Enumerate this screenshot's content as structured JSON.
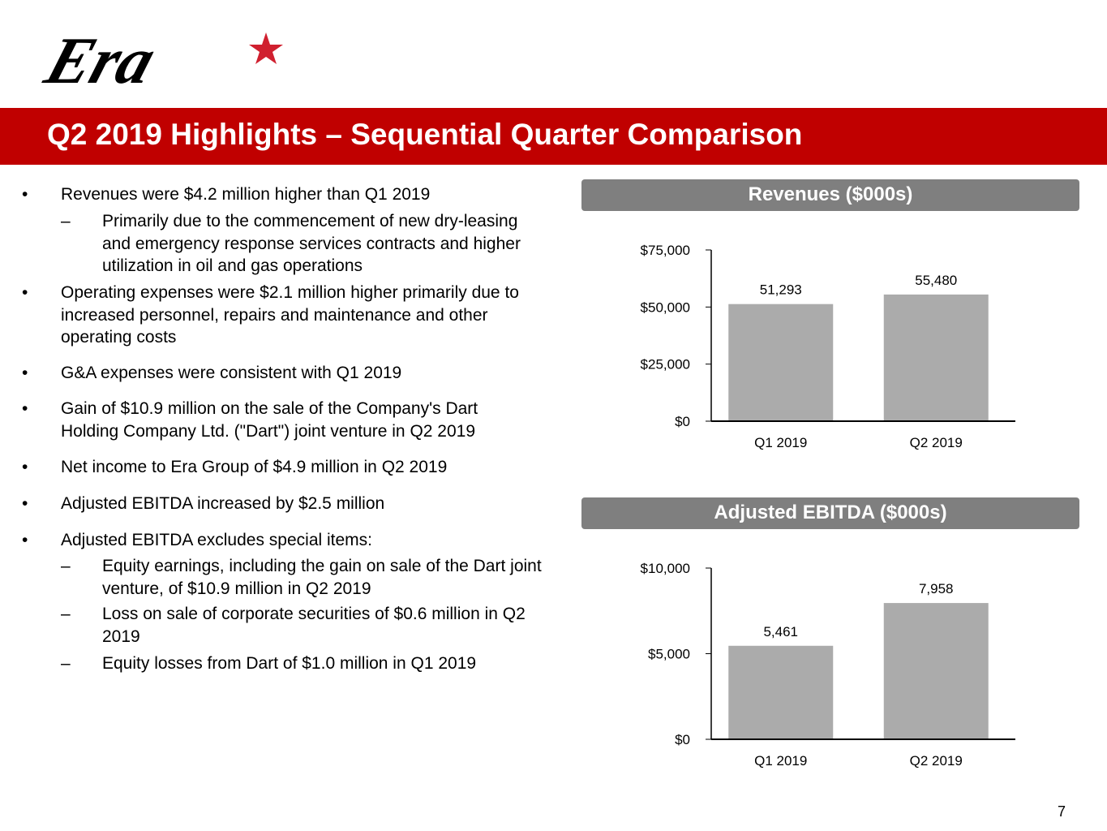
{
  "logo": {
    "text": "Era",
    "colors": {
      "text": "#000000",
      "star": "#d0202f"
    }
  },
  "title": "Q2 2019 Highlights – Sequential Quarter Comparison",
  "colors": {
    "banner": "#c00000",
    "chart_header": "#7f7f7f",
    "bar": "#ababab"
  },
  "bullets": [
    {
      "text": "Revenues were $4.2 million higher than Q1 2019",
      "sub": [
        "Primarily due to the commencement of new dry-leasing and emergency response services contracts and higher utilization in oil and gas operations"
      ]
    },
    {
      "text": "Operating expenses were $2.1 million higher primarily due to increased personnel, repairs and maintenance and other operating costs"
    },
    {
      "text": "G&A expenses were consistent with Q1 2019"
    },
    {
      "text": "Gain of $10.9 million on the sale of the Company's Dart Holding Company Ltd. (\"Dart\") joint venture in Q2 2019"
    },
    {
      "text": "Net income to Era Group of $4.9 million in Q2 2019"
    },
    {
      "text": "Adjusted EBITDA increased by $2.5 million"
    },
    {
      "text": "Adjusted EBITDA excludes special items:",
      "sub": [
        "Equity earnings, including the gain on sale of the Dart joint venture, of $10.9 million in Q2 2019",
        "Loss on sale of corporate securities of $0.6 million in Q2 2019",
        "Equity losses from Dart of $1.0 million in Q1 2019"
      ]
    }
  ],
  "bullet_glyph": "•",
  "dash_glyph": "–",
  "chart_data": [
    {
      "type": "bar",
      "title": "Revenues ($000s)",
      "categories": [
        "Q1 2019",
        "Q2 2019"
      ],
      "values": [
        51293,
        55480
      ],
      "labels": [
        "51,293",
        "55,480"
      ],
      "ylim": [
        0,
        75000
      ],
      "yticks": [
        0,
        25000,
        50000,
        75000
      ],
      "ytick_labels": [
        "$0",
        "$25,000",
        "$50,000",
        "$75,000"
      ],
      "xlabel": "",
      "ylabel": "",
      "grid": false
    },
    {
      "type": "bar",
      "title": "Adjusted EBITDA ($000s)",
      "categories": [
        "Q1 2019",
        "Q2 2019"
      ],
      "values": [
        5461,
        7958
      ],
      "labels": [
        "5,461",
        "7,958"
      ],
      "ylim": [
        0,
        10000
      ],
      "yticks": [
        0,
        5000,
        10000
      ],
      "ytick_labels": [
        "$0",
        "$5,000",
        "$10,000"
      ],
      "xlabel": "",
      "ylabel": "",
      "grid": false
    }
  ],
  "page_number": "7"
}
